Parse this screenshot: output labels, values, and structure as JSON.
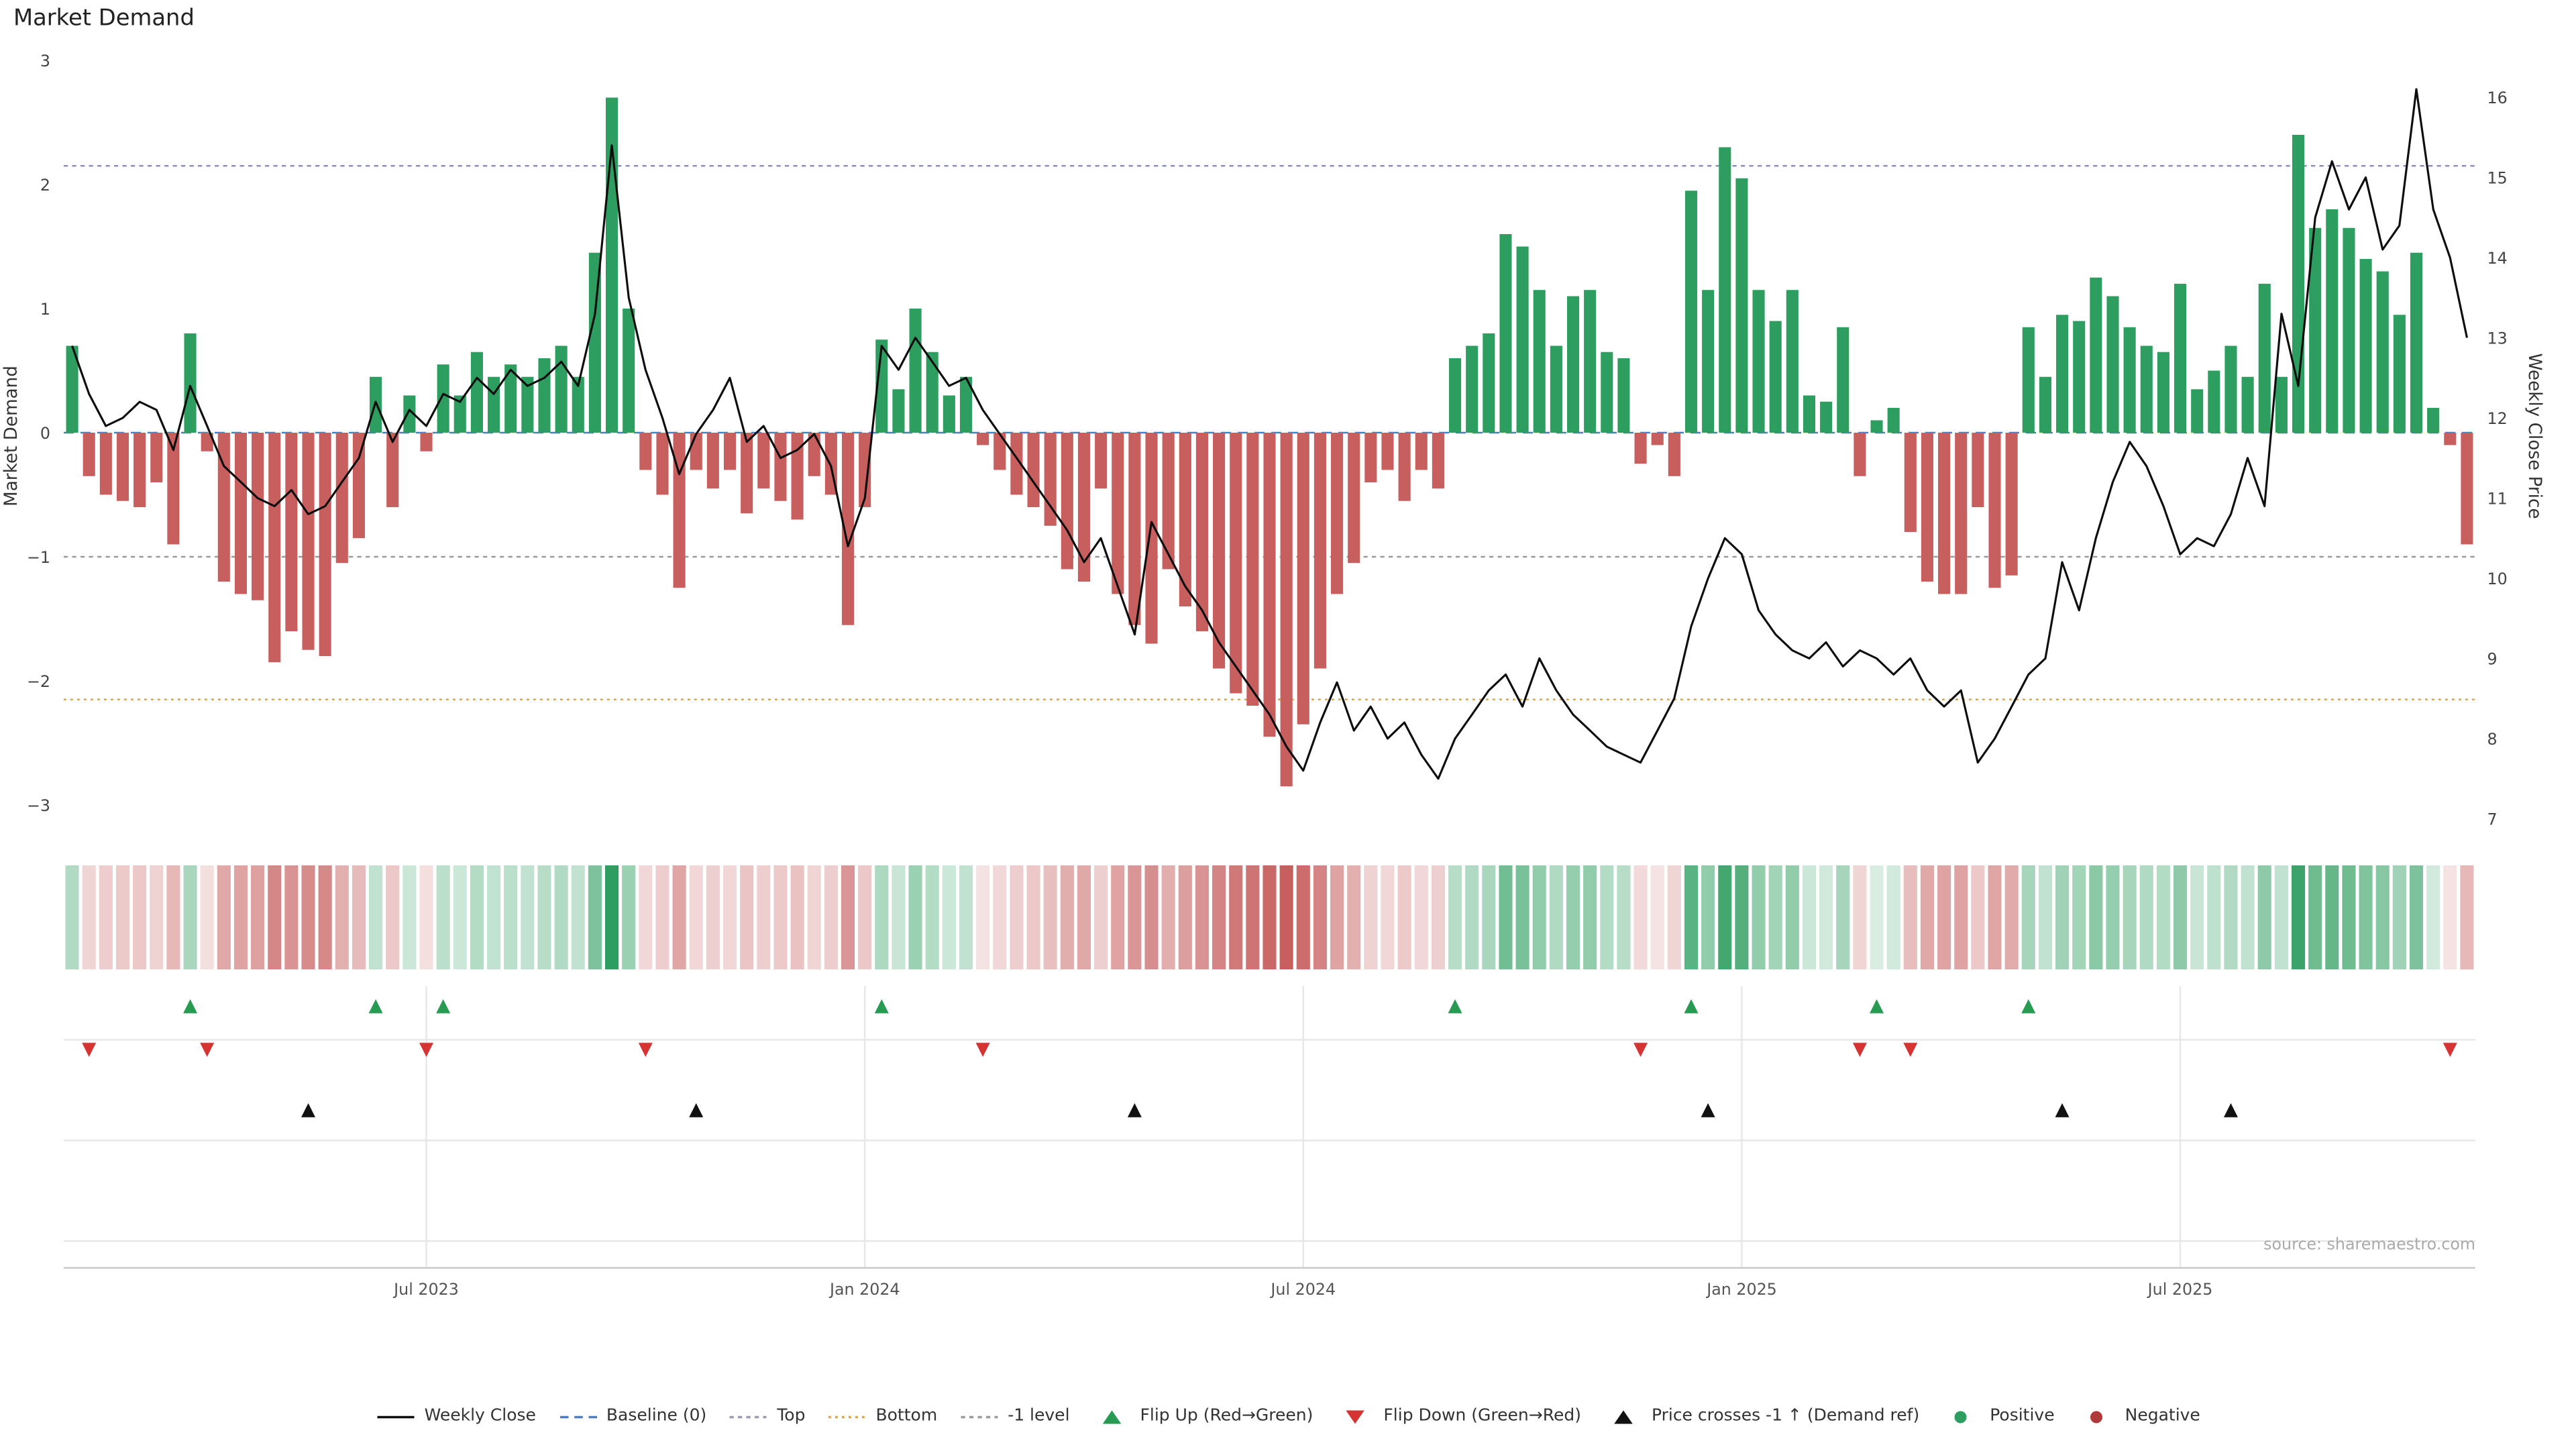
{
  "title": "Market Demand",
  "source_note": "source: sharemaestro.com",
  "colors": {
    "positive_bar": "#2e9e60",
    "negative_bar": "#c75f5f",
    "price_line": "#0d0d0d",
    "flip_up": "#279b52",
    "flip_down": "#d63333",
    "price_cross": "#111111",
    "grid": "#e7e7e7",
    "axis_line": "#c9c9c9",
    "tick_text": "#444444",
    "source_text": "#aaaaaa"
  },
  "chart_data": {
    "type": "bar+line",
    "title": "Market Demand",
    "x_tick_labels": [
      "Jul 2023",
      "Jan 2024",
      "Jul 2024",
      "Jan 2025",
      "Jul 2025"
    ],
    "x_tick_indices": [
      21,
      47,
      73,
      99,
      125
    ],
    "n_points": 143,
    "left_axis": {
      "label": "Market Demand",
      "ticks": [
        3,
        2,
        1,
        0,
        -1,
        -2,
        -3
      ],
      "range": [
        -3.2,
        3.1
      ]
    },
    "right_axis": {
      "label": "Weekly Close Price",
      "ticks": [
        16,
        15,
        14,
        13,
        12,
        11,
        10,
        9,
        8,
        7
      ],
      "range": [
        6.8,
        16.3
      ]
    },
    "series": [
      {
        "name": "Market Demand",
        "type": "bar",
        "axis": "left",
        "values": [
          0.7,
          -0.35,
          -0.5,
          -0.55,
          -0.6,
          -0.4,
          -0.9,
          0.8,
          -0.15,
          -1.2,
          -1.3,
          -1.35,
          -1.85,
          -1.6,
          -1.75,
          -1.8,
          -1.05,
          -0.85,
          0.45,
          -0.6,
          0.3,
          -0.15,
          0.55,
          0.3,
          0.65,
          0.45,
          0.55,
          0.45,
          0.6,
          0.7,
          0.45,
          1.45,
          2.7,
          1.0,
          -0.3,
          -0.5,
          -1.25,
          -0.3,
          -0.45,
          -0.3,
          -0.65,
          -0.45,
          -0.55,
          -0.7,
          -0.35,
          -0.5,
          -1.55,
          -0.6,
          0.75,
          0.35,
          1.0,
          0.65,
          0.3,
          0.45,
          -0.1,
          -0.3,
          -0.5,
          -0.6,
          -0.75,
          -1.1,
          -1.2,
          -0.45,
          -1.3,
          -1.55,
          -1.7,
          -1.1,
          -1.4,
          -1.6,
          -1.9,
          -2.1,
          -2.2,
          -2.45,
          -2.85,
          -2.35,
          -1.9,
          -1.3,
          -1.05,
          -0.4,
          -0.3,
          -0.55,
          -0.3,
          -0.45,
          0.6,
          0.7,
          0.8,
          1.6,
          1.5,
          1.15,
          0.7,
          1.1,
          1.15,
          0.65,
          0.6,
          -0.25,
          -0.1,
          -0.35,
          1.95,
          1.15,
          2.3,
          2.05,
          1.15,
          0.9,
          1.15,
          0.3,
          0.25,
          0.85,
          -0.35,
          0.1,
          0.2,
          -0.8,
          -1.2,
          -1.3,
          -1.3,
          -0.6,
          -1.25,
          -1.15,
          0.85,
          0.45,
          0.95,
          0.9,
          1.25,
          1.1,
          0.85,
          0.7,
          0.65,
          1.2,
          0.35,
          0.5,
          0.7,
          0.45,
          1.2,
          0.45,
          2.4,
          1.65,
          1.8,
          1.65,
          1.4,
          1.3,
          0.95,
          1.45,
          0.2,
          -0.1,
          -0.9
        ]
      },
      {
        "name": "Weekly Close",
        "type": "line",
        "axis": "right",
        "values": [
          12.9,
          12.3,
          11.9,
          12.0,
          12.2,
          12.1,
          11.6,
          12.4,
          11.9,
          11.4,
          11.2,
          11.0,
          10.9,
          11.1,
          10.8,
          10.9,
          11.2,
          11.5,
          12.2,
          11.7,
          12.1,
          11.9,
          12.3,
          12.2,
          12.5,
          12.3,
          12.6,
          12.4,
          12.5,
          12.7,
          12.4,
          13.3,
          15.4,
          13.5,
          12.6,
          12.0,
          11.3,
          11.8,
          12.1,
          12.5,
          11.7,
          11.9,
          11.5,
          11.6,
          11.8,
          11.4,
          10.4,
          11.0,
          12.9,
          12.6,
          13.0,
          12.7,
          12.4,
          12.5,
          12.1,
          11.8,
          11.5,
          11.2,
          10.9,
          10.6,
          10.2,
          10.5,
          9.9,
          9.3,
          10.7,
          10.3,
          9.9,
          9.6,
          9.2,
          8.9,
          8.6,
          8.3,
          7.9,
          7.6,
          8.2,
          8.7,
          8.1,
          8.4,
          8.0,
          8.2,
          7.8,
          7.5,
          8.0,
          8.3,
          8.6,
          8.8,
          8.4,
          9.0,
          8.6,
          8.3,
          8.1,
          7.9,
          7.8,
          7.7,
          8.1,
          8.5,
          9.4,
          10.0,
          10.5,
          10.3,
          9.6,
          9.3,
          9.1,
          9.0,
          9.2,
          8.9,
          9.1,
          9.0,
          8.8,
          9.0,
          8.6,
          8.4,
          8.6,
          7.7,
          8.0,
          8.4,
          8.8,
          9.0,
          10.2,
          9.6,
          10.5,
          11.2,
          11.7,
          11.4,
          10.9,
          10.3,
          10.5,
          10.4,
          10.8,
          11.5,
          10.9,
          13.3,
          12.4,
          14.5,
          15.2,
          14.6,
          15.0,
          14.1,
          14.4,
          16.1,
          14.6,
          14.0,
          13.0
        ]
      }
    ],
    "reference_lines": [
      {
        "key": "baseline",
        "name": "Baseline (0)",
        "value": 0,
        "style": "dashed",
        "dash": "6 4",
        "color": "#4d7fc0"
      },
      {
        "key": "top",
        "name": "Top",
        "value": 2.15,
        "style": "dashed",
        "dash": "2.5 2.5",
        "color": "#8a8ec5"
      },
      {
        "key": "bottom",
        "name": "Bottom",
        "value": -2.15,
        "style": "dotted",
        "dash": "1.5 2.5",
        "color": "#dfa23e"
      },
      {
        "key": "minus-1",
        "name": "-1 level",
        "value": -1,
        "style": "dashed",
        "dash": "2.5 2.5",
        "color": "#9a9a9a"
      }
    ],
    "markers": {
      "flip_up": {
        "label": "Flip Up (Red→Green)",
        "indices": [
          7,
          18,
          22,
          48,
          82,
          96,
          107,
          116
        ]
      },
      "flip_down": {
        "label": "Flip Down (Green→Red)",
        "indices": [
          1,
          8,
          21,
          34,
          54,
          93,
          106,
          109,
          141
        ]
      },
      "price_cross": {
        "label": "Price crosses -1 ↑ (Demand ref)",
        "indices": [
          14,
          37,
          63,
          97,
          118,
          128
        ]
      }
    },
    "heatmap": {
      "from_series": "Market Demand",
      "positive_color": "#2e9e60",
      "negative_color": "#c75f5f"
    },
    "legend_position": "bottom-center",
    "grid": "lower-panel-only"
  },
  "legend": [
    {
      "label": "Weekly Close",
      "symbol": "line",
      "color": "#0d0d0d"
    },
    {
      "label": "Baseline (0)",
      "symbol": "dashed",
      "dash": "5 3.5",
      "color": "#4d7fc0"
    },
    {
      "label": "Top",
      "symbol": "dashed",
      "dash": "2.5 2.5",
      "color": "#9a9ab0"
    },
    {
      "label": "Bottom",
      "symbol": "dotted",
      "dash": "1.5 2.5",
      "color": "#dfa23e"
    },
    {
      "label": "-1 level",
      "symbol": "dashed",
      "dash": "2.5 2.5",
      "color": "#9a9a9a"
    },
    {
      "label": "Flip Up (Red→Green)",
      "symbol": "triangle-up",
      "color": "#279b52"
    },
    {
      "label": "Flip Down (Green→Red)",
      "symbol": "triangle-down",
      "color": "#d63333"
    },
    {
      "label": "Price crosses -1 ↑ (Demand ref)",
      "symbol": "triangle-up",
      "color": "#111111"
    },
    {
      "label": "Positive",
      "symbol": "circle",
      "color": "#2e9e60"
    },
    {
      "label": "Negative",
      "symbol": "circle",
      "color": "#b03a3a"
    }
  ]
}
